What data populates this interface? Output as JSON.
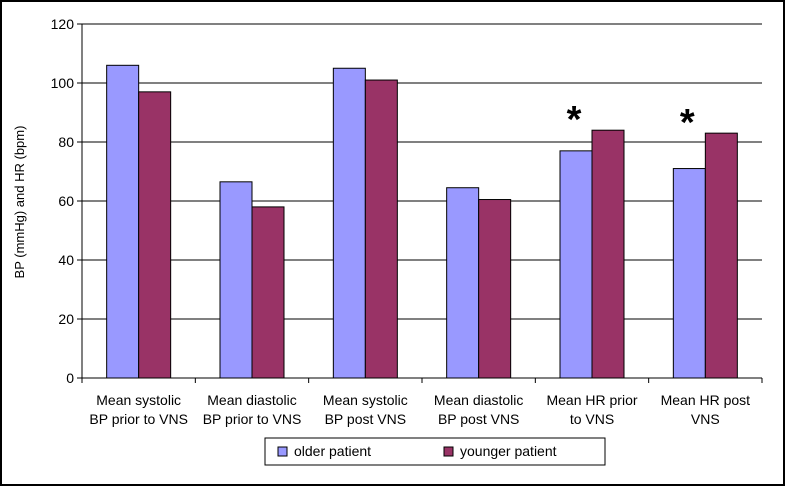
{
  "chart_data": {
    "type": "bar",
    "title": "",
    "ylabel": "BP (mmHg) and HR (bpm)",
    "xlabel": "",
    "ylim": [
      0,
      120
    ],
    "ytick_step": 20,
    "grid": true,
    "legend_position": "bottom",
    "categories": [
      [
        "Mean systolic",
        "BP prior to VNS"
      ],
      [
        "Mean diastolic",
        "BP prior to VNS"
      ],
      [
        "Mean systolic",
        "BP post VNS"
      ],
      [
        "Mean diastolic",
        "BP post VNS"
      ],
      [
        "Mean HR prior",
        "to VNS"
      ],
      [
        "Mean HR post",
        "VNS"
      ]
    ],
    "series": [
      {
        "name": "older patient",
        "color": "#9999ff",
        "values": [
          106,
          66.5,
          105,
          64.5,
          77,
          71
        ]
      },
      {
        "name": "younger patient",
        "color": "#993366",
        "values": [
          97,
          58,
          101,
          60.5,
          84,
          83
        ]
      }
    ],
    "annotations": [
      {
        "text": "*",
        "category_index": 4
      },
      {
        "text": "*",
        "category_index": 5
      }
    ]
  }
}
